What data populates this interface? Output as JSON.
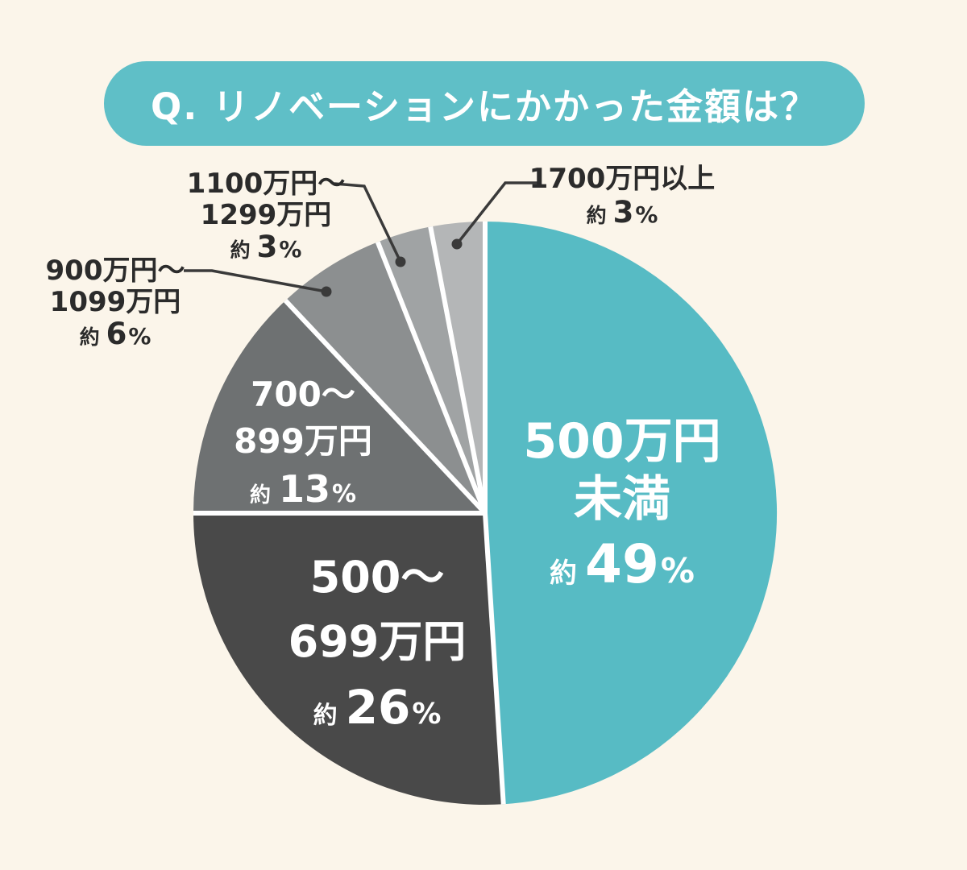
{
  "background_color": "#fbf5ea",
  "header": {
    "title": "Q. リノベーションにかかった金額は？",
    "bg_color": "#5fbfc7",
    "text_color": "#ffffff"
  },
  "colors": {
    "separator": "#ffffff",
    "leader_line": "#3a3a3a",
    "outside_label_text": "#2b2b2b",
    "inside_label_text": "#ffffff"
  },
  "chart_data": {
    "type": "pie",
    "title": "Q. リノベーションにかかった金額は？",
    "direction": "clockwise",
    "start_angle_deg": 0,
    "total": 100,
    "percent_sign": "%",
    "legend_position": "none",
    "segments": [
      {
        "name": "500万円未満",
        "lines": [
          "500万円",
          "未満"
        ],
        "approx": "約",
        "value": 49,
        "color": "#57bbc4",
        "label_placement": "inside"
      },
      {
        "name": "500〜699万円",
        "lines": [
          "500〜",
          "699万円"
        ],
        "approx": "約",
        "value": 26,
        "color": "#494949",
        "label_placement": "inside"
      },
      {
        "name": "700〜899万円",
        "lines": [
          "700〜",
          "899万円"
        ],
        "approx": "約",
        "value": 13,
        "color": "#6e7172",
        "label_placement": "inside"
      },
      {
        "name": "900万円〜1099万円",
        "lines": [
          "900万円〜",
          "1099万円"
        ],
        "approx": "約",
        "value": 6,
        "color": "#8c8f90",
        "label_placement": "outside-left"
      },
      {
        "name": "1100万円〜1299万円",
        "lines": [
          "1100万円〜",
          "1299万円"
        ],
        "approx": "約",
        "value": 3,
        "color": "#a0a3a4",
        "label_placement": "outside-top-left"
      },
      {
        "name": "1700万円以上",
        "lines": [
          "1700万円以上"
        ],
        "approx": "約",
        "value": 3,
        "color": "#b4b6b7",
        "label_placement": "outside-top-right"
      }
    ]
  }
}
